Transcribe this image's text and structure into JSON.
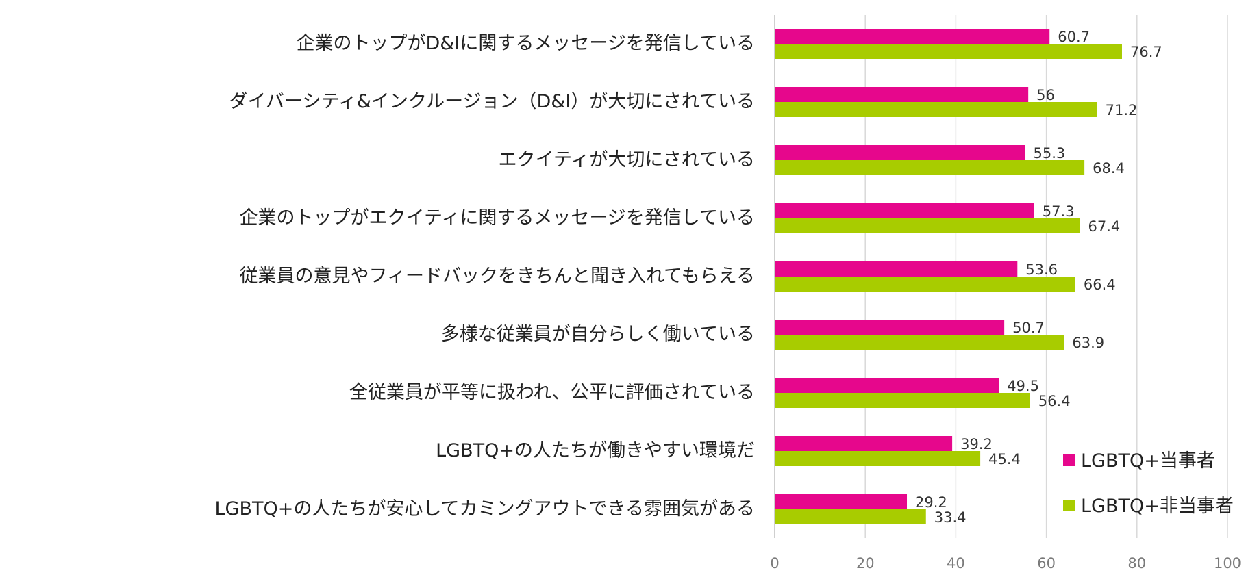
{
  "chart_data": {
    "type": "bar",
    "orientation": "horizontal",
    "categories": [
      "企業のトップがD&Iに関するメッセージを発信している",
      "ダイバーシティ&インクルージョン（D&I）が大切にされている",
      "エクイティが大切にされている",
      "企業のトップがエクイティに関するメッセージを発信している",
      "従業員の意見やフィードバックをきちんと聞き入れてもらえる",
      "多様な従業員が自分らしく働いている",
      "全従業員が平等に扱われ、公平に評価されている",
      "LGBTQ+の人たちが働きやすい環境だ",
      "LGBTQ+の人たちが安心してカミングアウトできる雰囲気がある"
    ],
    "series": [
      {
        "name": "LGBTQ+当事者",
        "color": "#e6078c",
        "values": [
          60.7,
          56,
          55.3,
          57.3,
          53.6,
          50.7,
          49.5,
          39.2,
          29.2
        ],
        "labels": [
          "60.7",
          "56",
          "55.3",
          "57.3",
          "53.6",
          "50.7",
          "49.5",
          "39.2",
          "29.2"
        ]
      },
      {
        "name": "LGBTQ+非当事者",
        "color": "#a8cc00",
        "values": [
          76.7,
          71.2,
          68.4,
          67.4,
          66.4,
          63.9,
          56.4,
          45.4,
          33.4
        ],
        "labels": [
          "76.7",
          "71.2",
          "68.4",
          "67.4",
          "66.4",
          "63.9",
          "56.4",
          "45.4",
          "33.4"
        ]
      }
    ],
    "xlim": [
      0,
      100
    ],
    "xticks": [
      0,
      20,
      40,
      60,
      80,
      100
    ],
    "xtick_labels": [
      "0",
      "20",
      "40",
      "60",
      "80",
      "100"
    ],
    "grid": true,
    "legend_position": "bottom-right",
    "title": "",
    "xlabel": "",
    "ylabel": ""
  }
}
